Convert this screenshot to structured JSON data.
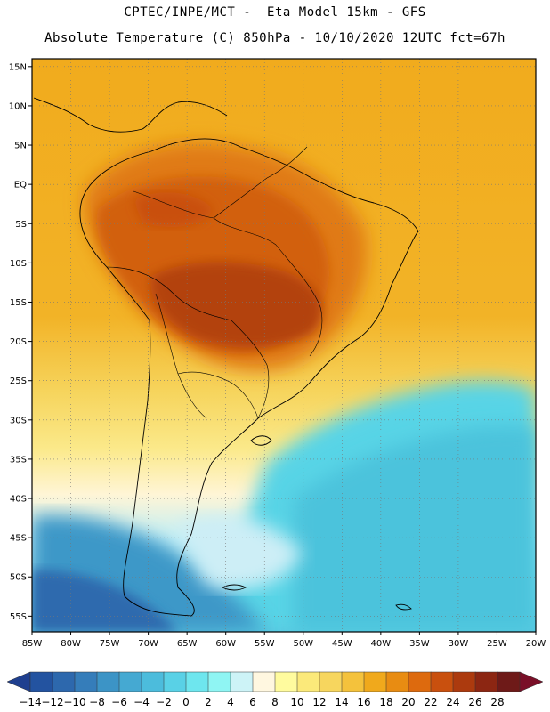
{
  "header": {
    "line1": "CPTEC/INPE/MCT -  Eta Model 15km - GFS",
    "line2": "Absolute Temperature (C) 850hPa - 10/10/2020 12UTC fct=67h"
  },
  "map": {
    "lat_labels": [
      "15N",
      "10N",
      "5N",
      "EQ",
      "5S",
      "10S",
      "15S",
      "20S",
      "25S",
      "30S",
      "35S",
      "40S",
      "45S",
      "50S",
      "55S"
    ],
    "lon_labels": [
      "85W",
      "80W",
      "75W",
      "70W",
      "65W",
      "60W",
      "55W",
      "50W",
      "45W",
      "40W",
      "35W",
      "30W",
      "25W",
      "20W"
    ],
    "lon_range": [
      -85,
      -20
    ],
    "lat_range": [
      -57,
      16
    ]
  },
  "colorbar": {
    "labels": [
      "-14",
      "-12",
      "-10",
      "-8",
      "-6",
      "-4",
      "-2",
      "0",
      "2",
      "4",
      "6",
      "8",
      "10",
      "12",
      "14",
      "16",
      "18",
      "20",
      "22",
      "24",
      "26",
      "28"
    ],
    "colors": [
      "#1f3f8f",
      "#2353a0",
      "#2d68ad",
      "#357dba",
      "#3c94c6",
      "#45a9d2",
      "#4cbcdc",
      "#59d1e6",
      "#6ee6ee",
      "#8ff5f3",
      "#cdf3f7",
      "#fff7e0",
      "#fffb9e",
      "#fbe97a",
      "#f7d65e",
      "#f4c23c",
      "#f0a91c",
      "#e88c12",
      "#dd6a0e",
      "#c9500e",
      "#ac3a0e",
      "#8c2612",
      "#6e1a18",
      "#7a0f28"
    ]
  }
}
